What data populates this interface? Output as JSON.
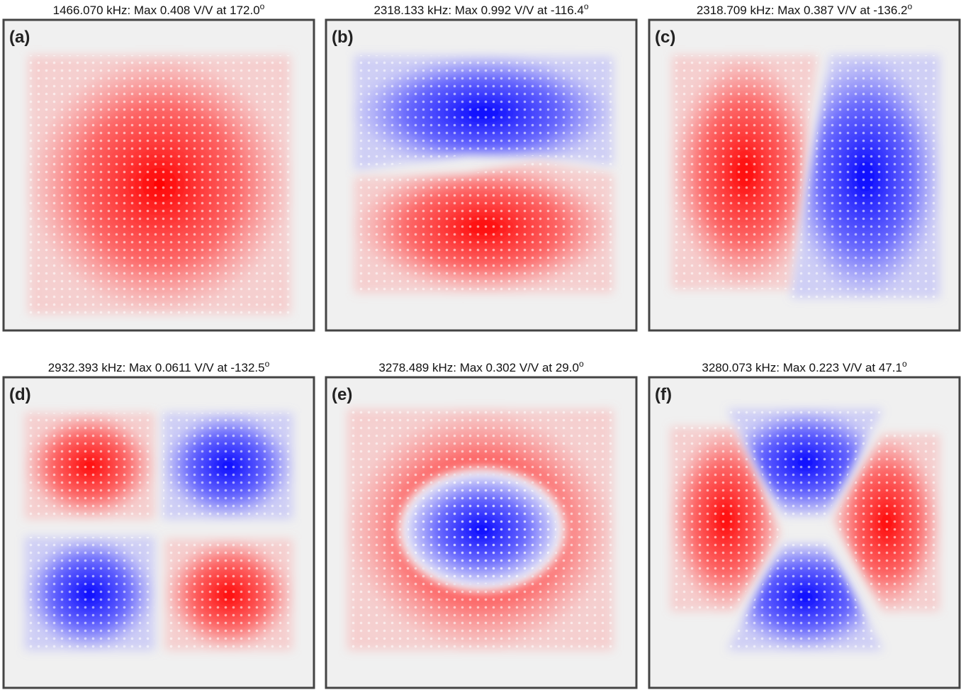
{
  "panels": [
    {
      "label": "(a)",
      "title": "1466.070 kHz: Max 0.408 V/V at 172.0",
      "title_sup": "o"
    },
    {
      "label": "(b)",
      "title": "2318.133 kHz: Max 0.992 V/V at -116.4",
      "title_sup": "o"
    },
    {
      "label": "(c)",
      "title": "2318.709 kHz: Max 0.387 V/V at -136.2",
      "title_sup": "o"
    },
    {
      "label": "(d)",
      "title": "2932.393 kHz: Max 0.0611 V/V at -132.5",
      "title_sup": "o"
    },
    {
      "label": "(e)",
      "title": "3278.489 kHz: Max 0.302 V/V at 29.0",
      "title_sup": "o"
    },
    {
      "label": "(f)",
      "title": "3280.073 kHz: Max 0.223 V/V at 47.1",
      "title_sup": "o"
    }
  ]
}
